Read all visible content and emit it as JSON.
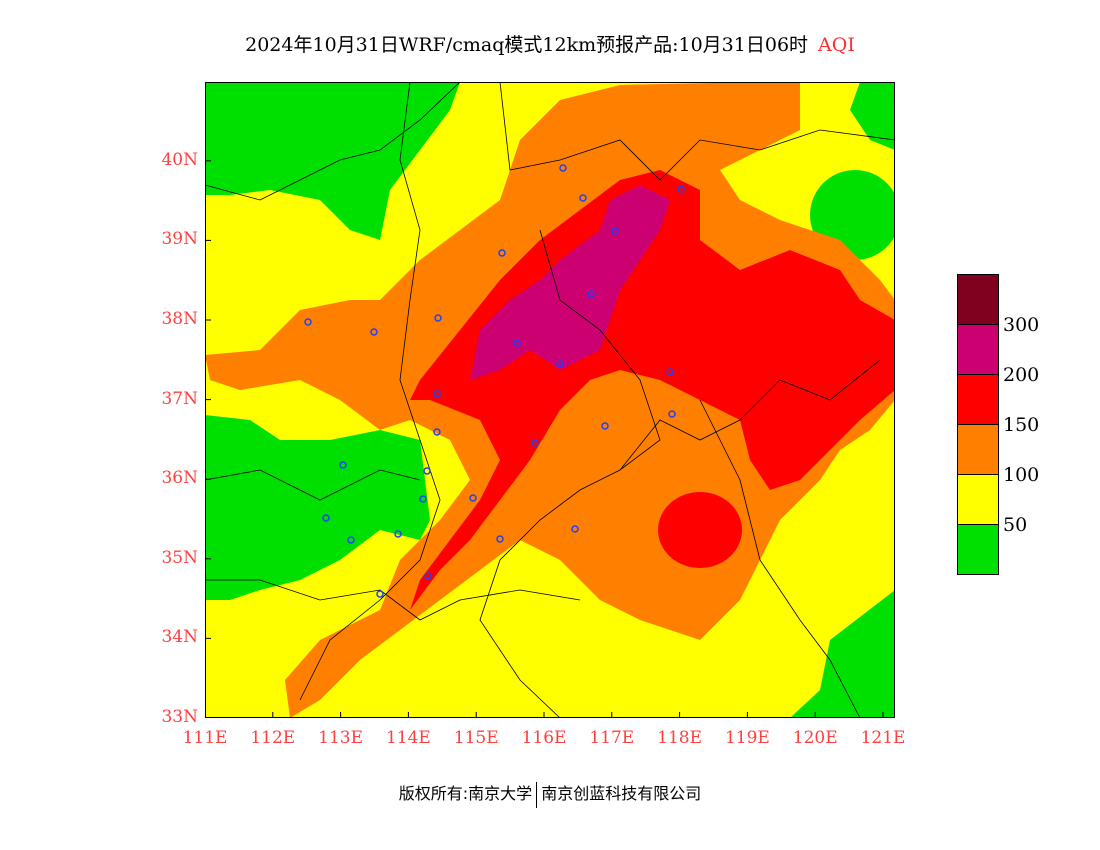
{
  "title": {
    "main": "2024年10月31日WRF/cmaq模式12km预报产品:10月31日06时",
    "variable": "AQI"
  },
  "axes": {
    "lat_labels": [
      "33N",
      "34N",
      "35N",
      "36N",
      "37N",
      "38N",
      "39N",
      "40N"
    ],
    "lon_labels": [
      "111E",
      "112E",
      "113E",
      "114E",
      "115E",
      "116E",
      "117E",
      "118E",
      "119E",
      "120E",
      "121E"
    ]
  },
  "legend": {
    "colors": [
      "#800020",
      "#cc0070",
      "#ff0000",
      "#ff8000",
      "#ffff00",
      "#00e000"
    ],
    "labels": [
      "300",
      "200",
      "150",
      "100",
      "50"
    ]
  },
  "footer": {
    "copyright": "版权所有:南京大学",
    "company": "南京创蓝科技有限公司"
  }
}
